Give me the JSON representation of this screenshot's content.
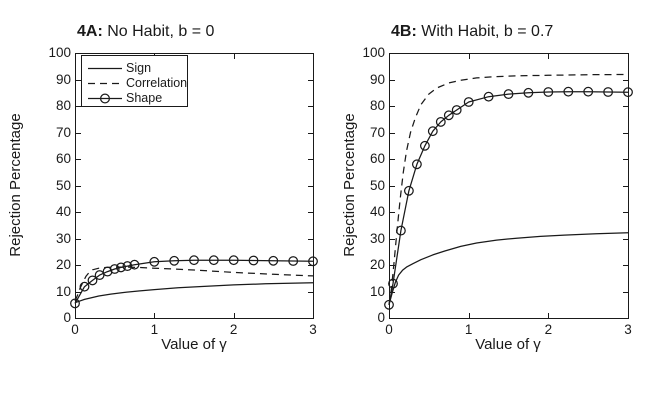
{
  "figure": {
    "background": "#ffffff",
    "ink": "#1a1a1a"
  },
  "chart_data": [
    {
      "id": "4A",
      "type": "line",
      "title_prefix": "4A:",
      "title_rest": " No Habit, b = 0",
      "xlabel": "Value of γ",
      "ylabel": "Rejection Percentage",
      "xlim": [
        0,
        3
      ],
      "ylim": [
        0,
        100
      ],
      "xticks": [
        0,
        1,
        2,
        3
      ],
      "yticks": [
        0,
        10,
        20,
        30,
        40,
        50,
        60,
        70,
        80,
        90,
        100
      ],
      "grid": false,
      "legend": {
        "visible": true,
        "position": "top-left",
        "entries": [
          "Sign",
          "Correlation",
          "Shape"
        ]
      },
      "series": [
        {
          "name": "Sign",
          "line": "solid",
          "marker": "none",
          "x": [
            0,
            0.05,
            0.12,
            0.2,
            0.3,
            0.45,
            0.6,
            0.8,
            1.0,
            1.3,
            1.6,
            2.0,
            2.4,
            2.7,
            3.0
          ],
          "y": [
            5.8,
            6.3,
            7.0,
            7.6,
            8.3,
            9.0,
            9.6,
            10.2,
            10.7,
            11.4,
            11.9,
            12.5,
            12.9,
            13.1,
            13.3
          ]
        },
        {
          "name": "Correlation",
          "line": "dashed",
          "marker": "none",
          "x": [
            0,
            0.03,
            0.06,
            0.1,
            0.14,
            0.18,
            0.22,
            0.3,
            0.4,
            0.5,
            0.65,
            0.8,
            1.0,
            1.25,
            1.5,
            2.0,
            2.5,
            3.0
          ],
          "y": [
            6.5,
            8.5,
            11.0,
            13.5,
            15.8,
            17.3,
            18.2,
            18.8,
            19.1,
            19.2,
            19.2,
            19.1,
            18.8,
            18.5,
            18.1,
            17.2,
            16.5,
            15.9
          ]
        },
        {
          "name": "Shape",
          "line": "solid",
          "marker": "circle",
          "x": [
            0,
            0.12,
            0.22,
            0.31,
            0.41,
            0.5,
            0.58,
            0.66,
            0.75,
            1.0,
            1.25,
            1.5,
            1.75,
            2.0,
            2.25,
            2.5,
            2.75,
            3.0
          ],
          "y": [
            5.5,
            11.8,
            14.2,
            16.2,
            17.5,
            18.5,
            19.1,
            19.6,
            20.1,
            21.2,
            21.6,
            21.8,
            21.8,
            21.8,
            21.7,
            21.6,
            21.5,
            21.4
          ]
        }
      ]
    },
    {
      "id": "4B",
      "type": "line",
      "title_prefix": "4B:",
      "title_rest": " With Habit, b = 0.7",
      "xlabel": "Value of γ",
      "ylabel": "Rejection Percentage",
      "xlim": [
        0,
        3
      ],
      "ylim": [
        0,
        100
      ],
      "xticks": [
        0,
        1,
        2,
        3
      ],
      "yticks": [
        0,
        10,
        20,
        30,
        40,
        50,
        60,
        70,
        80,
        90,
        100
      ],
      "grid": false,
      "legend": {
        "visible": false,
        "entries": []
      },
      "series": [
        {
          "name": "Sign",
          "line": "solid",
          "marker": "none",
          "x": [
            0,
            0.04,
            0.08,
            0.12,
            0.17,
            0.22,
            0.3,
            0.4,
            0.55,
            0.7,
            0.9,
            1.1,
            1.35,
            1.6,
            1.9,
            2.2,
            2.6,
            3.0
          ],
          "y": [
            5.0,
            9.5,
            13.5,
            16.2,
            18.0,
            19.2,
            20.5,
            22.0,
            23.8,
            25.3,
            27.0,
            28.3,
            29.4,
            30.1,
            30.8,
            31.3,
            31.8,
            32.2
          ]
        },
        {
          "name": "Correlation",
          "line": "dashed",
          "marker": "none",
          "x": [
            0,
            0.03,
            0.06,
            0.1,
            0.14,
            0.18,
            0.22,
            0.27,
            0.33,
            0.4,
            0.5,
            0.6,
            0.75,
            0.9,
            1.1,
            1.3,
            1.6,
            2.0,
            2.5,
            3.0
          ],
          "y": [
            5.0,
            11.0,
            20.0,
            33.0,
            45.0,
            55.0,
            63.0,
            70.0,
            75.5,
            80.5,
            84.5,
            86.8,
            88.7,
            89.7,
            90.6,
            91.0,
            91.4,
            91.6,
            91.8,
            91.9
          ]
        },
        {
          "name": "Shape",
          "line": "solid",
          "marker": "circle",
          "x": [
            0,
            0.05,
            0.15,
            0.25,
            0.35,
            0.45,
            0.55,
            0.65,
            0.75,
            0.85,
            1.0,
            1.25,
            1.5,
            1.75,
            2.0,
            2.25,
            2.5,
            2.75,
            3.0
          ],
          "y": [
            5.0,
            13.0,
            33.0,
            48.0,
            58.0,
            65.0,
            70.5,
            74.0,
            76.5,
            78.5,
            81.5,
            83.5,
            84.5,
            85.0,
            85.3,
            85.4,
            85.4,
            85.3,
            85.2
          ]
        }
      ]
    }
  ]
}
